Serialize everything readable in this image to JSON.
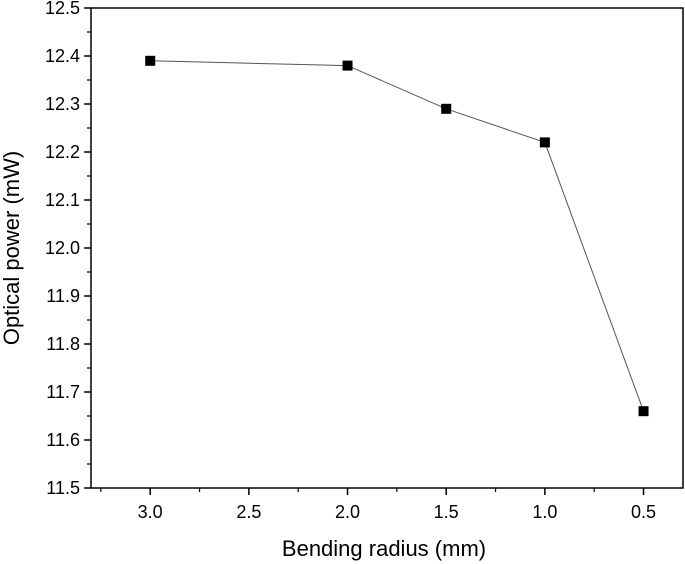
{
  "chart_data": {
    "type": "line",
    "title": "",
    "xlabel": "Bending radius (mm)",
    "ylabel": "Optical power (mW)",
    "x_reversed": true,
    "xlim": [
      3.3,
      0.3
    ],
    "ylim": [
      11.5,
      12.5
    ],
    "x_ticks": [
      "3.0",
      "2.5",
      "2.0",
      "1.5",
      "1.0",
      "0.5"
    ],
    "y_ticks": [
      "11.5",
      "11.6",
      "11.7",
      "11.8",
      "11.9",
      "12.0",
      "12.1",
      "12.2",
      "12.3",
      "12.4",
      "12.5"
    ],
    "grid": false,
    "legend": "none",
    "marker": "square",
    "colors": {
      "line": "#555555",
      "marker": "#000000",
      "axis": "#000000"
    },
    "series": [
      {
        "x": [
          3.0,
          2.0,
          1.5,
          1.0,
          0.5
        ],
        "y": [
          12.39,
          12.38,
          12.29,
          12.22,
          11.66
        ]
      }
    ]
  }
}
